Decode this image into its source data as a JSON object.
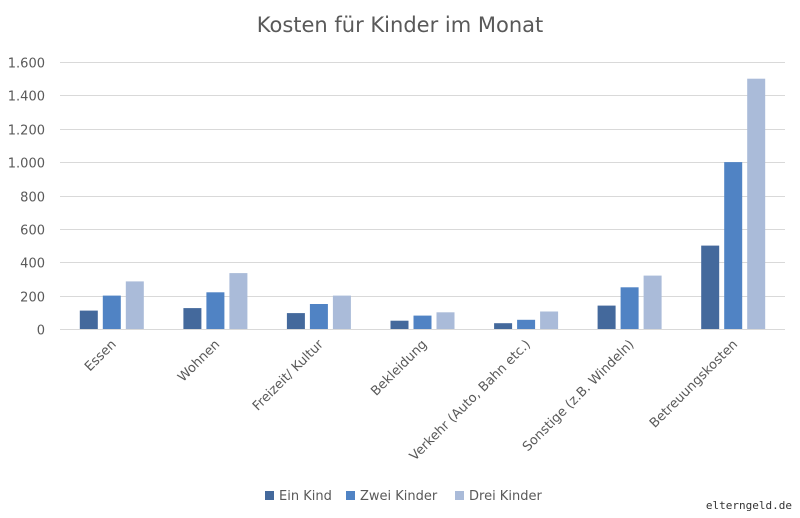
{
  "chart_data": {
    "type": "bar",
    "title": "Kosten für Kinder im Monat",
    "xlabel": "",
    "ylabel": "",
    "ylim": [
      0,
      1600
    ],
    "yticks": [
      0,
      200,
      400,
      600,
      800,
      1000,
      1200,
      1400,
      1600
    ],
    "ytick_labels": [
      "0",
      "200",
      "400",
      "600",
      "800",
      "1.000",
      "1.200",
      "1.400",
      "1.600"
    ],
    "grid": true,
    "legend_position": "bottom",
    "categories": [
      "Essen",
      "Wohnen",
      "Freizeit/ Kultur",
      "Bekleidung",
      "Verkehr (Auto, Bahn etc.)",
      "Sonstige (z.B. Windeln)",
      "Betreuungskosten"
    ],
    "series": [
      {
        "name": "Ein Kind",
        "color": "#44699c",
        "values": [
          110,
          125,
          95,
          50,
          35,
          140,
          500
        ]
      },
      {
        "name": "Zwei Kinder",
        "color": "#5083c4",
        "values": [
          200,
          220,
          150,
          80,
          55,
          250,
          1000
        ]
      },
      {
        "name": "Drei Kinder",
        "color": "#aabbd9",
        "values": [
          285,
          335,
          200,
          100,
          105,
          320,
          1500
        ]
      }
    ]
  },
  "watermark": "elterngeld.de"
}
